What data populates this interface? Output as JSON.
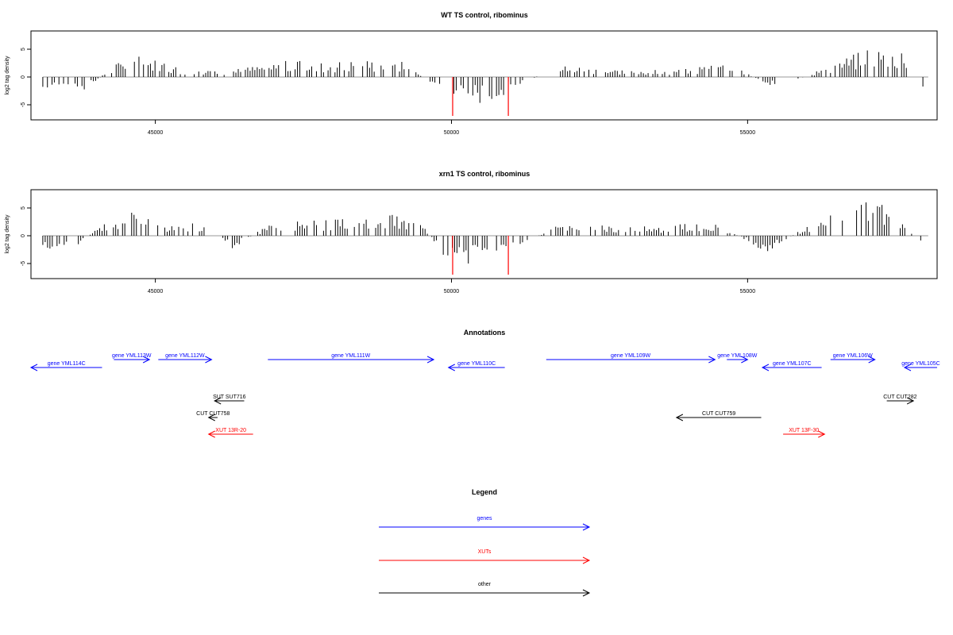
{
  "chart_data": [
    {
      "type": "bar",
      "title": "WT TS control, ribominus",
      "ylabel": "log2 tag density",
      "x_ticks": [
        45000,
        50000,
        55000
      ],
      "y_ticks": [
        -5,
        0,
        5
      ],
      "xlim": [
        42900,
        58200
      ],
      "ylim": [
        -7.5,
        8
      ],
      "bars_sampled_approx": [
        {
          "x": 43100,
          "y": -1.5
        },
        {
          "x": 43800,
          "y": -2.5
        },
        {
          "x": 44300,
          "y": 2.0
        },
        {
          "x": 44800,
          "y": 3.2
        },
        {
          "x": 45500,
          "y": 1.2
        },
        {
          "x": 46200,
          "y": 1.0
        },
        {
          "x": 47200,
          "y": 2.4
        },
        {
          "x": 47800,
          "y": 2.2
        },
        {
          "x": 48500,
          "y": 2.6
        },
        {
          "x": 49200,
          "y": 2.3
        },
        {
          "x": 49800,
          "y": -2.0
        },
        {
          "x": 50200,
          "y": -3.5
        },
        {
          "x": 50600,
          "y": -4.0
        },
        {
          "x": 51800,
          "y": 1.8
        },
        {
          "x": 52600,
          "y": 1.2
        },
        {
          "x": 53800,
          "y": 1.0
        },
        {
          "x": 54700,
          "y": 2.0
        },
        {
          "x": 55500,
          "y": -2.0
        },
        {
          "x": 56400,
          "y": 2.0
        },
        {
          "x": 57100,
          "y": 4.5
        },
        {
          "x": 57600,
          "y": 3.8
        },
        {
          "x": 58000,
          "y": -2.0
        }
      ],
      "red_spikes": [
        {
          "x": 50020,
          "y": -7.0
        },
        {
          "x": 50960,
          "y": -7.0
        }
      ]
    },
    {
      "type": "bar",
      "title": "xrn1 TS control, ribominus",
      "ylabel": "log2 tag density",
      "x_ticks": [
        45000,
        50000,
        55000
      ],
      "y_ticks": [
        -5,
        0,
        5
      ],
      "xlim": [
        42900,
        58200
      ],
      "ylim": [
        -7.5,
        8
      ],
      "bars_sampled_approx": [
        {
          "x": 43100,
          "y": -2.5
        },
        {
          "x": 43500,
          "y": -3.0
        },
        {
          "x": 44100,
          "y": 2.0
        },
        {
          "x": 44600,
          "y": 3.5
        },
        {
          "x": 45200,
          "y": 1.5
        },
        {
          "x": 45900,
          "y": 2.0
        },
        {
          "x": 46300,
          "y": -2.0
        },
        {
          "x": 47000,
          "y": 2.2
        },
        {
          "x": 47800,
          "y": 2.5
        },
        {
          "x": 48600,
          "y": 3.0
        },
        {
          "x": 49400,
          "y": 3.0
        },
        {
          "x": 49900,
          "y": -3.5
        },
        {
          "x": 50400,
          "y": -4.5
        },
        {
          "x": 51800,
          "y": 1.5
        },
        {
          "x": 52700,
          "y": 1.6
        },
        {
          "x": 53500,
          "y": 1.5
        },
        {
          "x": 54500,
          "y": 2.0
        },
        {
          "x": 55300,
          "y": -2.5
        },
        {
          "x": 56200,
          "y": 2.5
        },
        {
          "x": 57000,
          "y": 5.0
        },
        {
          "x": 57500,
          "y": 4.0
        },
        {
          "x": 58000,
          "y": -2.5
        }
      ],
      "red_spikes": [
        {
          "x": 50020,
          "y": -7.0
        },
        {
          "x": 50960,
          "y": -7.0
        }
      ]
    }
  ],
  "annotations": {
    "title": "Annotations",
    "features": [
      {
        "label": "gene YML114C",
        "kind": "gene",
        "color": "#0000ff",
        "strand": "-",
        "start": 42900,
        "end": 44100,
        "row": 1
      },
      {
        "label": "gene YML113W",
        "kind": "gene",
        "color": "#0000ff",
        "strand": "+",
        "start": 44300,
        "end": 44900,
        "row": 0
      },
      {
        "label": "gene YML112W",
        "kind": "gene",
        "color": "#0000ff",
        "strand": "+",
        "start": 45050,
        "end": 45950,
        "row": 0
      },
      {
        "label": "gene YML111W",
        "kind": "gene",
        "color": "#0000ff",
        "strand": "+",
        "start": 46900,
        "end": 49700,
        "row": 0
      },
      {
        "label": "gene YML110C",
        "kind": "gene",
        "color": "#0000ff",
        "strand": "-",
        "start": 49950,
        "end": 50900,
        "row": 1
      },
      {
        "label": "gene YML109W",
        "kind": "gene",
        "color": "#0000ff",
        "strand": "+",
        "start": 51600,
        "end": 54450,
        "row": 0
      },
      {
        "label": "gene YML108W",
        "kind": "gene",
        "color": "#0000ff",
        "strand": "+",
        "start": 54650,
        "end": 55000,
        "row": 0
      },
      {
        "label": "gene YML107C",
        "kind": "gene",
        "color": "#0000ff",
        "strand": "-",
        "start": 55250,
        "end": 56250,
        "row": 1
      },
      {
        "label": "gene YML106W",
        "kind": "gene",
        "color": "#0000ff",
        "strand": "+",
        "start": 56400,
        "end": 57150,
        "row": 0
      },
      {
        "label": "gene YML105C",
        "kind": "gene",
        "color": "#0000ff",
        "strand": "-",
        "start": 57650,
        "end": 58200,
        "row": 1
      },
      {
        "label": "SUT SUT716",
        "kind": "other",
        "color": "#000000",
        "strand": "-",
        "start": 46000,
        "end": 46500,
        "row": 3
      },
      {
        "label": "CUT CUT758",
        "kind": "other",
        "color": "#000000",
        "strand": "-",
        "start": 45900,
        "end": 46050,
        "row": 4
      },
      {
        "label": "XUT 13R-20",
        "kind": "XUT",
        "color": "#ff0000",
        "strand": "-",
        "start": 45900,
        "end": 46650,
        "row": 5
      },
      {
        "label": "CUT CUT759",
        "kind": "other",
        "color": "#000000",
        "strand": "-",
        "start": 53800,
        "end": 55230,
        "row": 4
      },
      {
        "label": "XUT 13F-30",
        "kind": "XUT",
        "color": "#ff0000",
        "strand": "+",
        "start": 55600,
        "end": 56300,
        "row": 5
      },
      {
        "label": "CUT CUT282",
        "kind": "other",
        "color": "#000000",
        "strand": "+",
        "start": 57350,
        "end": 57800,
        "row": 3
      }
    ]
  },
  "legend": {
    "title": "Legend",
    "items": [
      {
        "label": "genes",
        "color": "#0000ff"
      },
      {
        "label": "XUTs",
        "color": "#ff0000"
      },
      {
        "label": "other",
        "color": "#000000"
      }
    ]
  }
}
